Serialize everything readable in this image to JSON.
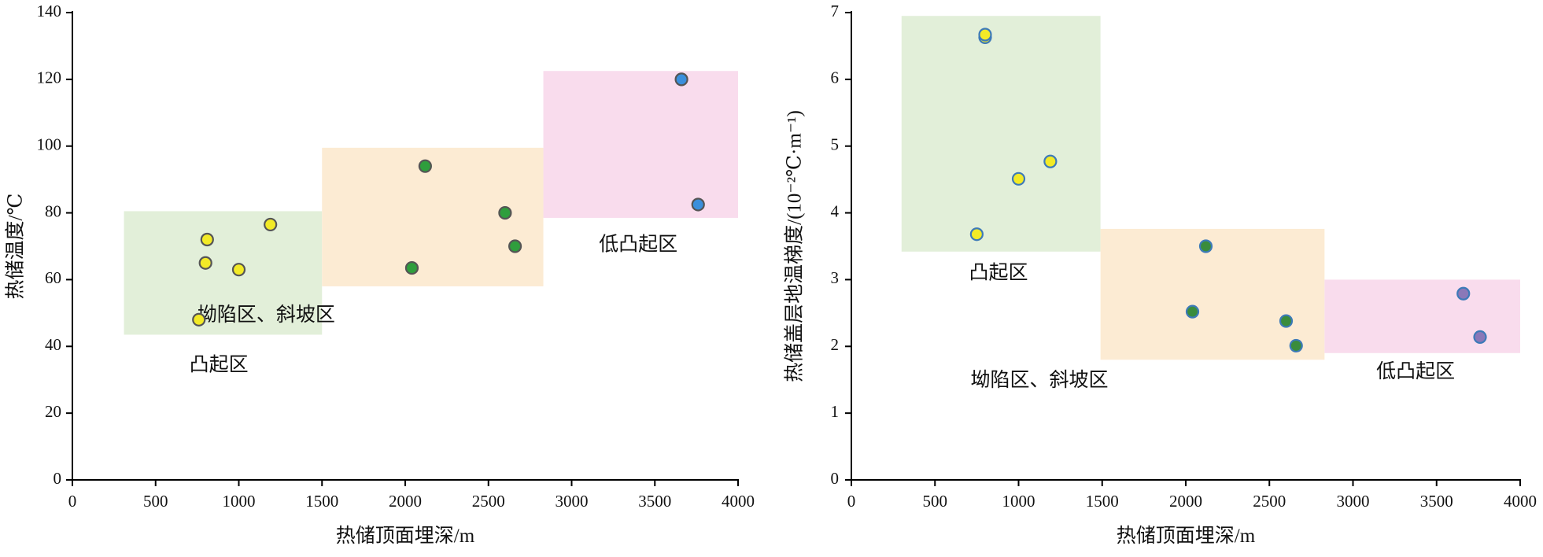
{
  "chart_data": [
    {
      "type": "scatter",
      "xlabel": "热储顶面埋深/m",
      "ylabel": "热储温度/℃",
      "xlim": [
        0,
        4000
      ],
      "ylim": [
        0,
        140
      ],
      "xticks": [
        "0",
        "500",
        "1000",
        "1500",
        "2000",
        "2500",
        "3000",
        "3500",
        "4000"
      ],
      "yticks": [
        "0",
        "20",
        "40",
        "60",
        "80",
        "100",
        "120",
        "140"
      ],
      "grid": false,
      "regions": [
        {
          "label": "凸起区",
          "x": [
            310,
            1500
          ],
          "y": [
            43.5,
            80.5
          ],
          "fill": "#e2efd9",
          "label_pos": [
            880,
            34
          ]
        },
        {
          "label": "坳陷区、斜坡区",
          "x": [
            1500,
            2830
          ],
          "y": [
            58,
            99.5
          ],
          "fill": "#fcebd3",
          "label_pos": [
            1165,
            49
          ]
        },
        {
          "label": "低凸起区",
          "x": [
            2830,
            4000
          ],
          "y": [
            78.5,
            122.5
          ],
          "fill": "#f9dced",
          "label_pos": [
            3400,
            70
          ]
        }
      ],
      "series": [
        {
          "color": "#f2ea27",
          "points": [
            {
              "x": 760,
              "y": 48
            },
            {
              "x": 800,
              "y": 65
            },
            {
              "x": 810,
              "y": 72
            },
            {
              "x": 1000,
              "y": 63
            },
            {
              "x": 1190,
              "y": 76.5
            }
          ]
        },
        {
          "color": "#2f9e3d",
          "points": [
            {
              "x": 2040,
              "y": 63.5
            },
            {
              "x": 2120,
              "y": 94
            },
            {
              "x": 2600,
              "y": 80
            },
            {
              "x": 2660,
              "y": 70
            }
          ]
        },
        {
          "color": "#3b8fdc",
          "points": [
            {
              "x": 3660,
              "y": 120
            },
            {
              "x": 3760,
              "y": 82.5
            }
          ]
        }
      ]
    },
    {
      "type": "scatter",
      "xlabel": "热储顶面埋深/m",
      "ylabel": "热储盖层地温梯度/(10⁻²℃·m⁻¹)",
      "xlim": [
        0,
        4000
      ],
      "ylim": [
        0,
        7
      ],
      "xticks": [
        "0",
        "500",
        "1000",
        "1500",
        "2000",
        "2500",
        "3000",
        "3500",
        "4000"
      ],
      "yticks": [
        "0",
        "1",
        "2",
        "3",
        "4",
        "5",
        "6",
        "7"
      ],
      "grid": false,
      "regions": [
        {
          "label": "凸起区",
          "x": [
            300,
            1490
          ],
          "y": [
            3.42,
            6.95
          ],
          "fill": "#e2efd9",
          "label_pos": [
            880,
            3.08
          ]
        },
        {
          "label": "坳陷区、斜坡区",
          "x": [
            1490,
            2830
          ],
          "y": [
            1.8,
            3.76
          ],
          "fill": "#fcebd3",
          "label_pos": [
            1125,
            1.47
          ]
        },
        {
          "label": "低凸起区",
          "x": [
            2830,
            4000
          ],
          "y": [
            1.9,
            3.0
          ],
          "fill": "#f9dced",
          "label_pos": [
            3375,
            1.6
          ]
        }
      ],
      "series": [
        {
          "color": "#f2ea27",
          "points": [
            {
              "x": 750,
              "y": 3.68
            },
            {
              "x": 800,
              "y": 6.63
            },
            {
              "x": 800,
              "y": 6.67
            },
            {
              "x": 1000,
              "y": 4.51
            },
            {
              "x": 1190,
              "y": 4.77
            }
          ]
        },
        {
          "color": "#3a8c3c",
          "points": [
            {
              "x": 2040,
              "y": 2.52
            },
            {
              "x": 2120,
              "y": 3.5
            },
            {
              "x": 2600,
              "y": 2.38
            },
            {
              "x": 2660,
              "y": 2.01
            }
          ]
        },
        {
          "color": "#8a78b8",
          "points": [
            {
              "x": 3660,
              "y": 2.79
            },
            {
              "x": 3760,
              "y": 2.14
            }
          ]
        }
      ]
    }
  ]
}
